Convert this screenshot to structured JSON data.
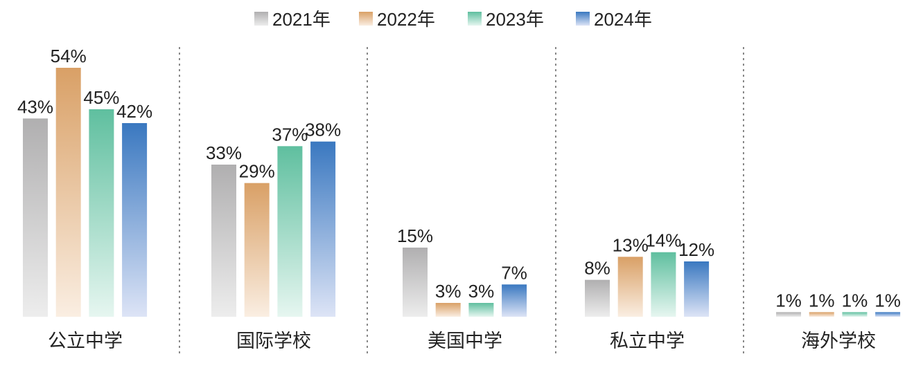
{
  "chart_data": {
    "type": "bar",
    "title": "",
    "xlabel": "",
    "ylabel": "",
    "ylim": [
      0,
      54
    ],
    "legend_position": "top-center",
    "categories": [
      "公立中学",
      "国际学校",
      "美国中学",
      "私立中学",
      "海外学校"
    ],
    "series": [
      {
        "name": "2021年",
        "values": [
          43,
          33,
          15,
          8,
          1
        ],
        "labels": [
          "43%",
          "33%",
          "15%",
          "8%",
          "1%"
        ],
        "color_top": "#b0afb0",
        "color_bottom": "#ededed"
      },
      {
        "name": "2022年",
        "values": [
          54,
          29,
          3,
          13,
          1
        ],
        "labels": [
          "54%",
          "29%",
          "3%",
          "13%",
          "1%"
        ],
        "color_top": "#d9a066",
        "color_bottom": "#faeee2"
      },
      {
        "name": "2023年",
        "values": [
          45,
          37,
          3,
          14,
          1
        ],
        "labels": [
          "45%",
          "37%",
          "3%",
          "14%",
          "1%"
        ],
        "color_top": "#5fbf9f",
        "color_bottom": "#e6f6f0"
      },
      {
        "name": "2024年",
        "values": [
          42,
          38,
          7,
          12,
          1
        ],
        "labels": [
          "42%",
          "38%",
          "7%",
          "12%",
          "1%"
        ],
        "color_top": "#3a78c0",
        "color_bottom": "#dde4f6"
      }
    ]
  }
}
